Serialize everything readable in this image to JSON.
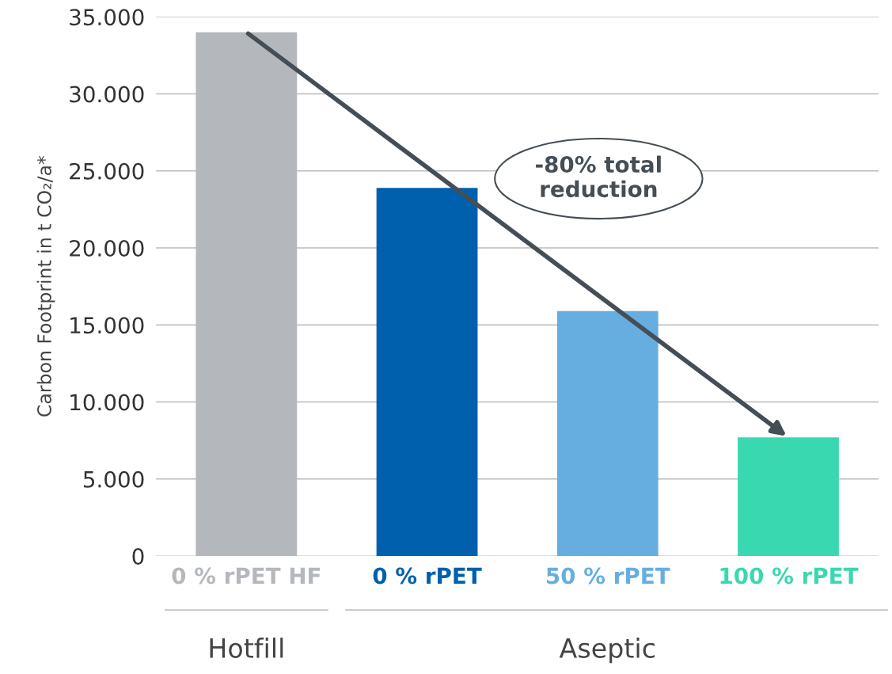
{
  "chart_data": {
    "type": "bar",
    "ylabel": "Carbon Footprint in t CO₂/a*",
    "categories": [
      "0 % rPET HF",
      "0 % rPET",
      "50 % rPET",
      "100 % rPET"
    ],
    "values": [
      34000,
      23900,
      15900,
      7700
    ],
    "colors": [
      "#b4b8bc",
      "#0060ad",
      "#66aee0",
      "#3ad8b0"
    ],
    "ylim": [
      0,
      35000
    ],
    "yticks": [
      {
        "value": 0,
        "label": "0"
      },
      {
        "value": 5000,
        "label": "5.000"
      },
      {
        "value": 10000,
        "label": "10.000"
      },
      {
        "value": 15000,
        "label": "15.000"
      },
      {
        "value": 20000,
        "label": "20.000"
      },
      {
        "value": 25000,
        "label": "25.000"
      },
      {
        "value": 30000,
        "label": "30.000"
      },
      {
        "value": 35000,
        "label": "35.000"
      }
    ],
    "grid": "y",
    "legend": false,
    "annotations": [
      "-80% total reduction",
      "Hotfill",
      "Aseptic"
    ]
  }
}
